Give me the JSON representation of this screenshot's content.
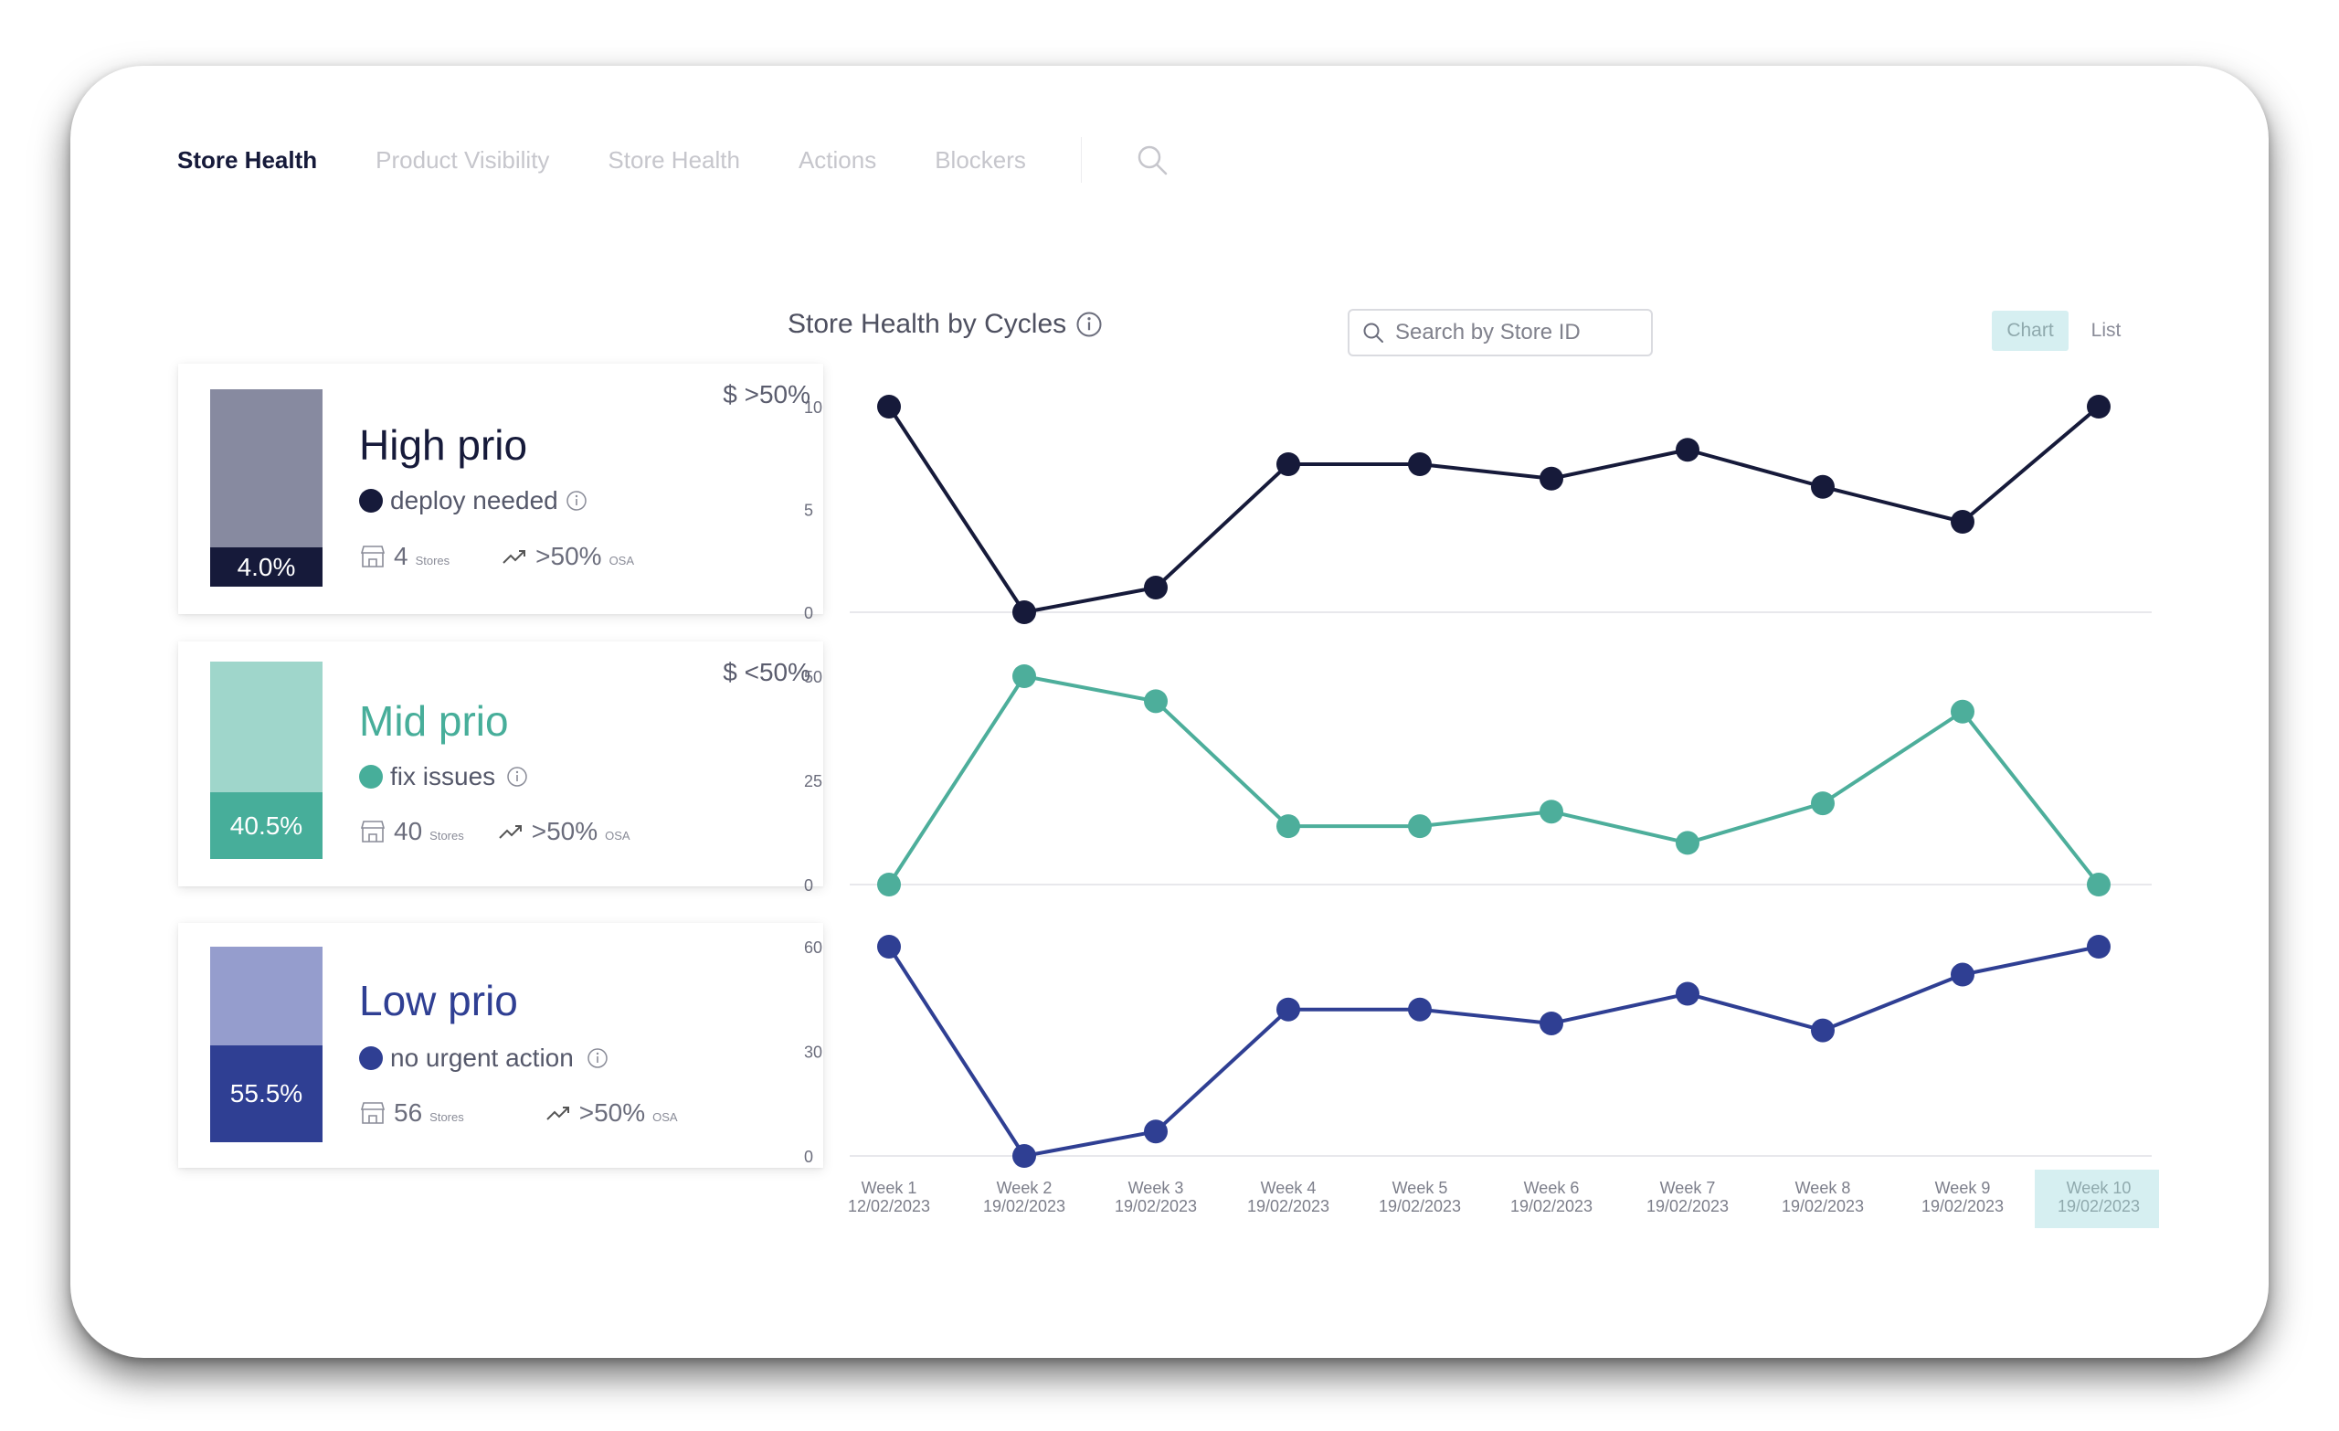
{
  "nav": {
    "items": [
      "Store Health",
      "Product Visibility",
      "Store Health",
      "Actions",
      "Blockers"
    ],
    "search_icon": "search-icon"
  },
  "prio_cards": [
    {
      "title": "High prio",
      "threshold": "$ >50%",
      "status": "deploy needed",
      "percent": "4.0%",
      "stores": "4",
      "stores_unit": "Stores",
      "osa": ">50%",
      "osa_unit": "OSA",
      "color_dark": "#161a3a",
      "color_light": "#878aa0",
      "title_color": "#161a3a"
    },
    {
      "title": "Mid prio",
      "threshold": "$ <50%",
      "status": "fix issues",
      "percent": "40.5%",
      "stores": "40",
      "stores_unit": "Stores",
      "osa": ">50%",
      "osa_unit": "OSA",
      "color_dark": "#47ae9a",
      "color_light": "#9fd6cb",
      "title_color": "#47ae9a"
    },
    {
      "title": "Low prio",
      "threshold": "",
      "status": "no urgent action",
      "percent": "55.5%",
      "stores": "56",
      "stores_unit": "Stores",
      "osa": ">50%",
      "osa_unit": "OSA",
      "color_dark": "#2f3f93",
      "color_light": "#959dcd",
      "title_color": "#2f3f93"
    }
  ],
  "chart": {
    "title": "Store Health by Cycles",
    "search_placeholder": "Search by Store ID",
    "toggle_chart": "Chart",
    "toggle_list": "List"
  },
  "chart_data": {
    "type": "line",
    "title": "Store Health by Cycles",
    "categories": [
      {
        "week": "Week 1",
        "date": "12/02/2023"
      },
      {
        "week": "Week 2",
        "date": "19/02/2023"
      },
      {
        "week": "Week 3",
        "date": "19/02/2023"
      },
      {
        "week": "Week 4",
        "date": "19/02/2023"
      },
      {
        "week": "Week 5",
        "date": "19/02/2023"
      },
      {
        "week": "Week 6",
        "date": "19/02/2023"
      },
      {
        "week": "Week 7",
        "date": "19/02/2023"
      },
      {
        "week": "Week 8",
        "date": "19/02/2023"
      },
      {
        "week": "Week 9",
        "date": "19/02/2023"
      },
      {
        "week": "Week 10",
        "date": "19/02/2023"
      }
    ],
    "highlighted_category": 9,
    "panels": [
      {
        "color": "#161a3a",
        "yticks": [
          0,
          5,
          10
        ],
        "ylim": [
          0,
          10
        ],
        "values": [
          10,
          0,
          1.2,
          7.2,
          7.2,
          6.5,
          7.9,
          6.1,
          4.4,
          10
        ]
      },
      {
        "color": "#4dae9b",
        "yticks": [
          0,
          25,
          50
        ],
        "ylim": [
          0,
          50
        ],
        "values": [
          0,
          50,
          44,
          14,
          14,
          17.5,
          10,
          19.5,
          41.5,
          0
        ]
      },
      {
        "color": "#2f3f93",
        "yticks": [
          0,
          30,
          60
        ],
        "ylim": [
          0,
          60
        ],
        "values": [
          60,
          0,
          7,
          42,
          42,
          38,
          46.5,
          36,
          52,
          60
        ]
      }
    ]
  }
}
